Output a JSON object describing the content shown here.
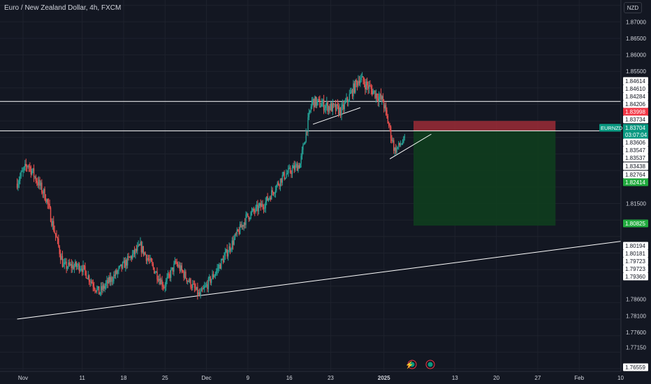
{
  "header": {
    "title": "Euro / New Zealand Dollar, 4h, FXCM",
    "currency_button": "NZD"
  },
  "colors": {
    "background": "#131722",
    "grid": "#1e222d",
    "up": "#26a69a",
    "down": "#ef5350",
    "text": "#d1d4dc",
    "label_box": "#ffffff",
    "stop_zone": "#9c2b36",
    "target_zone": "#0f3d1e",
    "profit_label": "#22ab3f",
    "stop_label": "#f23645",
    "symbol_label": "#089981"
  },
  "chart_data": {
    "type": "candlestick",
    "symbol": "EURNZD",
    "title": "Euro / New Zealand Dollar, 4h, FXCM",
    "ylabel": "NZD",
    "ylim": [
      1.765,
      1.8745
    ],
    "y_ticks": [
      "1.87000",
      "1.86500",
      "1.86000",
      "1.85500",
      "1.81500",
      "1.78600",
      "1.78100",
      "1.77600",
      "1.77150"
    ],
    "x_ticks": [
      "Nov",
      "11",
      "18",
      "25",
      "Dec",
      "9",
      "16",
      "23",
      "2025",
      "13",
      "20",
      "27",
      "Feb",
      "10"
    ],
    "x_tick_bold": [
      "2025"
    ],
    "price_labels": [
      {
        "text": "1.84614",
        "style": "plain"
      },
      {
        "text": "1.84610",
        "style": "plain"
      },
      {
        "text": "1.84284",
        "style": "plain"
      },
      {
        "text": "1.84206",
        "style": "plain"
      },
      {
        "text": "1.83998",
        "style": "stop"
      },
      {
        "text": "1.83734",
        "style": "plain"
      },
      {
        "text": "1.83704",
        "style": "current"
      },
      {
        "text": "03:07:04",
        "style": "countdown"
      },
      {
        "text": "1.83606",
        "style": "plain"
      },
      {
        "text": "1.83547",
        "style": "plain"
      },
      {
        "text": "1.83537",
        "style": "plain"
      },
      {
        "text": "1.83438",
        "style": "plain"
      },
      {
        "text": "1.82764",
        "style": "plain"
      },
      {
        "text": "1.82414",
        "style": "profit"
      },
      {
        "text": "1.80825",
        "style": "profit"
      },
      {
        "text": "1.80194",
        "style": "plain"
      },
      {
        "text": "1.80181",
        "style": "plain"
      },
      {
        "text": "1.79723",
        "style": "plain"
      },
      {
        "text": "1.79723",
        "style": "plain"
      },
      {
        "text": "1.79360",
        "style": "plain"
      },
      {
        "text": "1.76559",
        "style": "plain"
      }
    ],
    "symbol_label": "EURNZD",
    "horizontal_levels": [
      1.8459,
      1.837
    ],
    "trendlines": [
      {
        "from": {
          "x": "Oct 30",
          "y": 1.78
        },
        "to": {
          "x": "Feb 12",
          "y": 1.804
        }
      },
      {
        "from": {
          "x": "Dec 20",
          "y": 1.839
        },
        "to": {
          "x": "Dec 28",
          "y": 1.844
        }
      },
      {
        "from": {
          "x": "Jan 2",
          "y": 1.8285
        },
        "to": {
          "x": "Jan 9",
          "y": 1.836
        }
      }
    ],
    "position": {
      "type": "short",
      "entry": 1.837,
      "stop": 1.84,
      "target": 1.8083,
      "start": "Jan 6",
      "end": "Jan 30"
    },
    "segments": [
      {
        "from": "Oct 30",
        "to": "Nov 2",
        "start": 1.821,
        "end": 1.827,
        "vol": 0.0035
      },
      {
        "from": "Nov 2",
        "to": "Nov 5",
        "start": 1.827,
        "end": 1.817,
        "vol": 0.0035
      },
      {
        "from": "Nov 5",
        "to": "Nov 8",
        "start": 1.817,
        "end": 1.796,
        "vol": 0.0035
      },
      {
        "from": "Nov 8",
        "to": "Nov 11",
        "start": 1.796,
        "end": 1.796,
        "vol": 0.003
      },
      {
        "from": "Nov 11",
        "to": "Nov 14",
        "start": 1.796,
        "end": 1.788,
        "vol": 0.003
      },
      {
        "from": "Nov 14",
        "to": "Nov 18",
        "start": 1.788,
        "end": 1.796,
        "vol": 0.003
      },
      {
        "from": "Nov 18",
        "to": "Nov 21",
        "start": 1.796,
        "end": 1.802,
        "vol": 0.003
      },
      {
        "from": "Nov 21",
        "to": "Nov 25",
        "start": 1.802,
        "end": 1.79,
        "vol": 0.003
      },
      {
        "from": "Nov 25",
        "to": "Nov 27",
        "start": 1.79,
        "end": 1.797,
        "vol": 0.003
      },
      {
        "from": "Nov 27",
        "to": "Dec 1",
        "start": 1.797,
        "end": 1.787,
        "vol": 0.003
      },
      {
        "from": "Dec 1",
        "to": "Dec 4",
        "start": 1.787,
        "end": 1.795,
        "vol": 0.003
      },
      {
        "from": "Dec 4",
        "to": "Dec 9",
        "start": 1.795,
        "end": 1.811,
        "vol": 0.003
      },
      {
        "from": "Dec 9",
        "to": "Dec 12",
        "start": 1.811,
        "end": 1.815,
        "vol": 0.003
      },
      {
        "from": "Dec 12",
        "to": "Dec 15",
        "start": 1.815,
        "end": 1.823,
        "vol": 0.003
      },
      {
        "from": "Dec 15",
        "to": "Dec 18",
        "start": 1.823,
        "end": 1.827,
        "vol": 0.003
      },
      {
        "from": "Dec 18",
        "to": "Dec 20",
        "start": 1.827,
        "end": 1.846,
        "vol": 0.003
      },
      {
        "from": "Dec 20",
        "to": "Dec 25",
        "start": 1.846,
        "end": 1.843,
        "vol": 0.0035
      },
      {
        "from": "Dec 25",
        "to": "Dec 28",
        "start": 1.843,
        "end": 1.853,
        "vol": 0.0035
      },
      {
        "from": "Dec 28",
        "to": "Jan 1",
        "start": 1.853,
        "end": 1.846,
        "vol": 0.0035
      },
      {
        "from": "Jan 1",
        "to": "Jan 3",
        "start": 1.846,
        "end": 1.831,
        "vol": 0.0035
      },
      {
        "from": "Jan 3",
        "to": "Jan 6",
        "start": 1.831,
        "end": 1.837,
        "vol": 0.0025
      }
    ]
  }
}
